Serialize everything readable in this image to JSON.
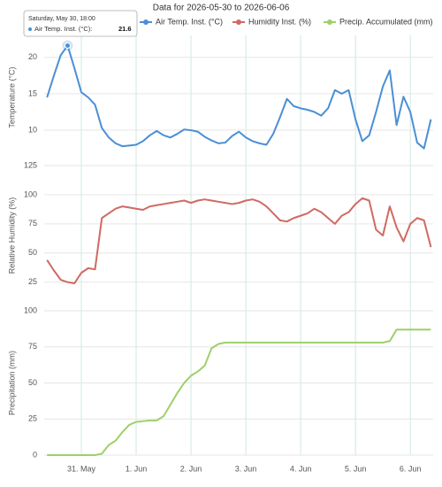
{
  "chart_data": {
    "type": "line",
    "title": "Data for 2026-05-30 to 2026-06-06",
    "x": [
      "2026-05-30T09:00",
      "2026-05-30T12:00",
      "2026-05-30T15:00",
      "2026-05-30T18:00",
      "2026-05-30T21:00",
      "2026-05-31T00:00",
      "2026-05-31T03:00",
      "2026-05-31T06:00",
      "2026-05-31T09:00",
      "2026-05-31T12:00",
      "2026-05-31T15:00",
      "2026-05-31T18:00",
      "2026-05-31T21:00",
      "2026-06-01T00:00",
      "2026-06-01T03:00",
      "2026-06-01T06:00",
      "2026-06-01T09:00",
      "2026-06-01T12:00",
      "2026-06-01T15:00",
      "2026-06-01T18:00",
      "2026-06-01T21:00",
      "2026-06-02T00:00",
      "2026-06-02T03:00",
      "2026-06-02T06:00",
      "2026-06-02T09:00",
      "2026-06-02T12:00",
      "2026-06-02T15:00",
      "2026-06-02T18:00",
      "2026-06-02T21:00",
      "2026-06-03T00:00",
      "2026-06-03T03:00",
      "2026-06-03T06:00",
      "2026-06-03T09:00",
      "2026-06-03T12:00",
      "2026-06-03T15:00",
      "2026-06-03T18:00",
      "2026-06-03T21:00",
      "2026-06-04T00:00",
      "2026-06-04T03:00",
      "2026-06-04T06:00",
      "2026-06-04T09:00",
      "2026-06-04T12:00",
      "2026-06-04T15:00",
      "2026-06-04T18:00",
      "2026-06-04T21:00",
      "2026-06-05T00:00",
      "2026-06-05T03:00",
      "2026-06-05T06:00",
      "2026-06-05T09:00",
      "2026-06-05T12:00",
      "2026-06-05T15:00",
      "2026-06-05T18:00",
      "2026-06-05T21:00",
      "2026-06-06T00:00",
      "2026-06-06T03:00",
      "2026-06-06T06:00",
      "2026-06-06T09:00"
    ],
    "xlim": [
      "2026-05-30T07:45",
      "2026-06-06T10:00"
    ],
    "xticks": [
      {
        "value": "2026-05-31T00:00",
        "label": "31. May"
      },
      {
        "value": "2026-06-01T00:00",
        "label": "1. Jun"
      },
      {
        "value": "2026-06-02T00:00",
        "label": "2. Jun"
      },
      {
        "value": "2026-06-03T00:00",
        "label": "3. Jun"
      },
      {
        "value": "2026-06-04T00:00",
        "label": "4. Jun"
      },
      {
        "value": "2026-06-05T00:00",
        "label": "5. Jun"
      },
      {
        "value": "2026-06-06T00:00",
        "label": "6. Jun"
      }
    ],
    "grid": true,
    "panels": [
      {
        "ylabel": "Temperature (°C)",
        "ylim": [
          6,
          23
        ],
        "yticks": [
          10,
          15,
          20
        ]
      },
      {
        "ylabel": "Relative Humidity (%)",
        "ylim": [
          5,
          125
        ],
        "yticks": [
          25,
          50,
          75,
          100,
          125
        ]
      },
      {
        "ylabel": "Precipitation (mm)",
        "ylim": [
          0,
          100
        ],
        "yticks": [
          0,
          25,
          50,
          75,
          100
        ]
      }
    ],
    "series": [
      {
        "name": "Air Temp. Inst. (°C)",
        "color": "#4a8fd6",
        "panel": 0,
        "values": [
          14.5,
          17.5,
          20.3,
          21.6,
          18.5,
          15.2,
          14.5,
          13.5,
          10.3,
          9.0,
          8.2,
          7.8,
          7.9,
          8.0,
          8.5,
          9.3,
          9.9,
          9.3,
          9.0,
          9.5,
          10.1,
          10.0,
          9.8,
          9.1,
          8.6,
          8.2,
          8.3,
          9.2,
          9.8,
          9.0,
          8.5,
          8.2,
          8.0,
          9.5,
          11.8,
          14.3,
          13.3,
          13.0,
          12.8,
          12.5,
          12.0,
          13.0,
          15.5,
          15.0,
          15.5,
          11.5,
          8.5,
          9.3,
          12.5,
          16.0,
          18.2,
          10.7,
          14.6,
          12.5,
          8.3,
          7.5,
          11.5
        ]
      },
      {
        "name": "Humidity Inst. (%)",
        "color": "#d06a62",
        "panel": 1,
        "values": [
          44,
          35,
          27,
          25,
          24,
          33,
          37,
          36,
          80,
          84,
          88,
          90,
          89,
          88,
          87,
          90,
          91,
          92,
          93,
          94,
          95,
          93,
          95,
          96,
          95,
          94,
          93,
          92,
          93,
          95,
          96,
          94,
          90,
          84,
          78,
          77,
          80,
          82,
          84,
          88,
          85,
          80,
          75,
          82,
          85,
          92,
          97,
          95,
          70,
          65,
          90,
          72,
          60,
          75,
          80,
          78,
          55
        ]
      },
      {
        "name": "Precip. Accumulated (mm)",
        "color": "#9ed06a",
        "panel": 2,
        "values": [
          0,
          0,
          0,
          0,
          0,
          0,
          0,
          0,
          1,
          7,
          10,
          16,
          21,
          23,
          23.5,
          24,
          24,
          27,
          35,
          43,
          50,
          55,
          58,
          62,
          74,
          77,
          78,
          78,
          78,
          78,
          78,
          78,
          78,
          78,
          78,
          78,
          78,
          78,
          78,
          78,
          78,
          78,
          78,
          78,
          78,
          78,
          78,
          78,
          78,
          78,
          79,
          87,
          87,
          87,
          87,
          87,
          87
        ]
      }
    ],
    "tooltip": {
      "header": "Saturday, May 30, 18:00",
      "label": "Air Temp. Inst. (°C):",
      "value": 21.6
    }
  }
}
